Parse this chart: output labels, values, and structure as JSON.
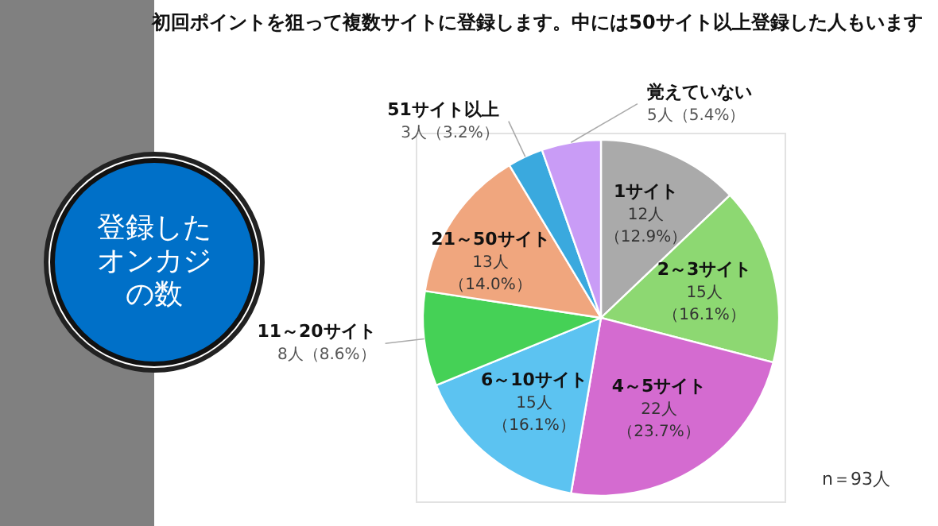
{
  "chart_data": {
    "type": "pie",
    "title": "初回ポイントを狙って複数サイトに登録します。中には50サイト以上登録した人もいます",
    "subtitle": "登録したオンカジの数",
    "categories": [
      "1サイト",
      "2～3サイト",
      "4～5サイト",
      "6～10サイト",
      "11～20サイト",
      "21～50サイト",
      "51サイト以上",
      "覚えていない"
    ],
    "values": [
      12,
      15,
      22,
      15,
      8,
      13,
      3,
      5
    ],
    "colors": [
      "#aaaaaa",
      "#8dd872",
      "#d46bd0",
      "#5cc3f1",
      "#45d156",
      "#f0a67e",
      "#3aa9de",
      "#c99cf6"
    ],
    "value_labels": [
      "12人（12.9%）",
      "15人（16.1%）",
      "22人（23.7%）",
      "15人（16.1%）",
      "8人（8.6%）",
      "13人（14.0%）",
      "3人（3.2%）",
      "5人（5.4%）"
    ],
    "annotations": [
      "n＝93人"
    ]
  }
}
